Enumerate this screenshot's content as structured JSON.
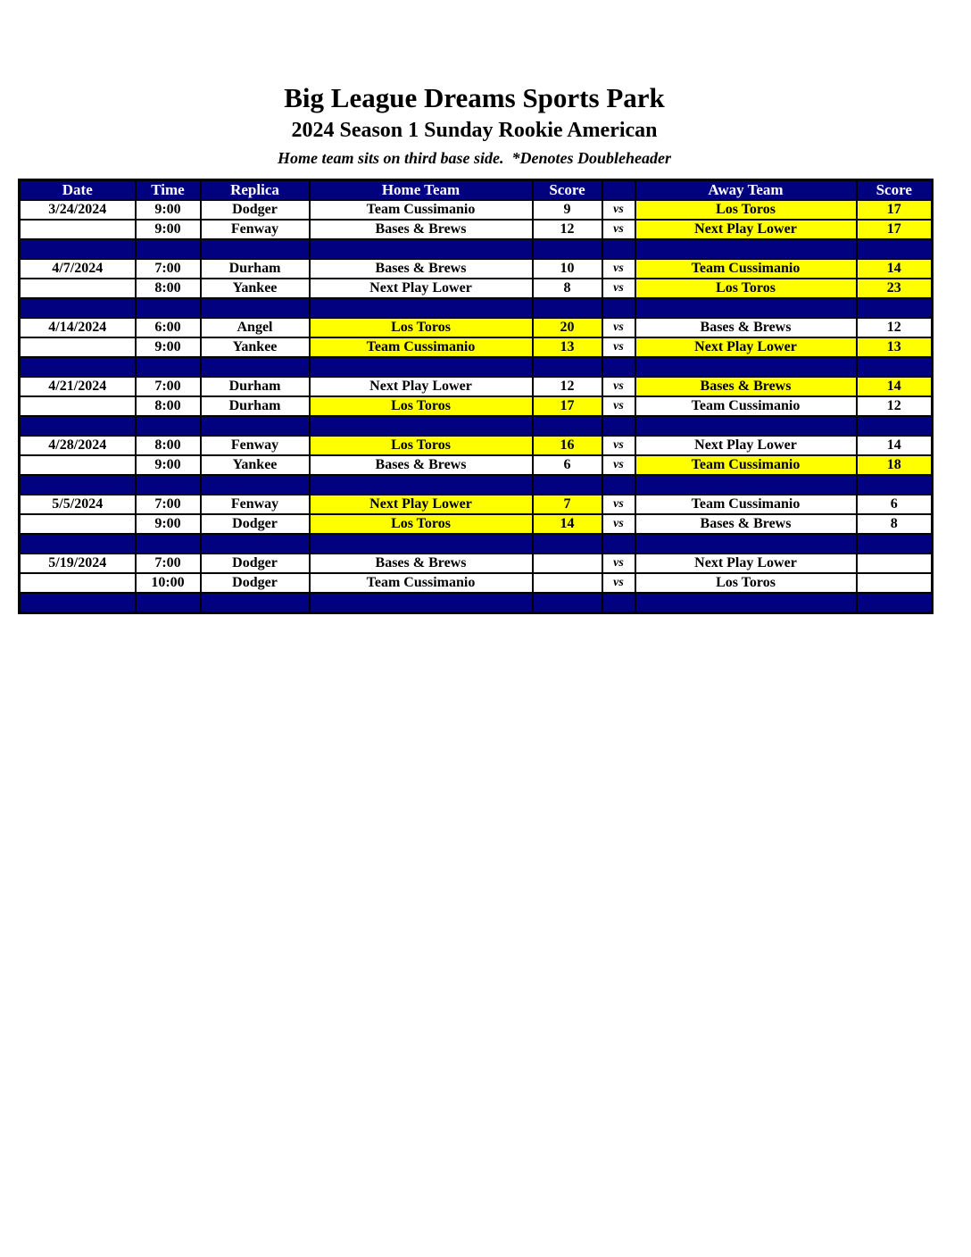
{
  "page": {
    "title": "Big League Dreams Sports Park",
    "subtitle": "2024 Season 1 Sunday Rookie American",
    "note": "Home team sits on third base side.  *Denotes Doubleheader"
  },
  "colors": {
    "navy": "#020280",
    "highlight": "#ffff00",
    "border": "#000000",
    "header_text": "#ffffff"
  },
  "table": {
    "headers": [
      "Date",
      "Time",
      "Replica",
      "Home Team",
      "Score",
      "",
      "Away Team",
      "Score"
    ],
    "vs_label": "vs",
    "rows": [
      {
        "type": "game",
        "date": "3/24/2024",
        "time": "9:00",
        "replica": "Dodger",
        "home": "Team Cussimanio",
        "home_score": "9",
        "away": "Los Toros",
        "away_score": "17",
        "home_win": false,
        "away_win": true
      },
      {
        "type": "game",
        "date": "",
        "time": "9:00",
        "replica": "Fenway",
        "home": "Bases & Brews",
        "home_score": "12",
        "away": "Next Play Lower",
        "away_score": "17",
        "home_win": false,
        "away_win": true
      },
      {
        "type": "separator"
      },
      {
        "type": "game",
        "date": "4/7/2024",
        "time": "7:00",
        "replica": "Durham",
        "home": "Bases & Brews",
        "home_score": "10",
        "away": "Team Cussimanio",
        "away_score": "14",
        "home_win": false,
        "away_win": true
      },
      {
        "type": "game",
        "date": "",
        "time": "8:00",
        "replica": "Yankee",
        "home": "Next Play Lower",
        "home_score": "8",
        "away": "Los Toros",
        "away_score": "23",
        "home_win": false,
        "away_win": true
      },
      {
        "type": "separator"
      },
      {
        "type": "game",
        "date": "4/14/2024",
        "time": "6:00",
        "replica": "Angel",
        "home": "Los Toros",
        "home_score": "20",
        "away": "Bases & Brews",
        "away_score": "12",
        "home_win": true,
        "away_win": false
      },
      {
        "type": "game",
        "date": "",
        "time": "9:00",
        "replica": "Yankee",
        "home": "Team Cussimanio",
        "home_score": "13",
        "away": "Next Play Lower",
        "away_score": "13",
        "home_win": true,
        "away_win": true
      },
      {
        "type": "separator"
      },
      {
        "type": "game",
        "date": "4/21/2024",
        "time": "7:00",
        "replica": "Durham",
        "home": "Next Play Lower",
        "home_score": "12",
        "away": "Bases & Brews",
        "away_score": "14",
        "home_win": false,
        "away_win": true
      },
      {
        "type": "game",
        "date": "",
        "time": "8:00",
        "replica": "Durham",
        "home": "Los Toros",
        "home_score": "17",
        "away": "Team Cussimanio",
        "away_score": "12",
        "home_win": true,
        "away_win": false
      },
      {
        "type": "separator"
      },
      {
        "type": "game",
        "date": "4/28/2024",
        "time": "8:00",
        "replica": "Fenway",
        "home": "Los Toros",
        "home_score": "16",
        "away": "Next Play Lower",
        "away_score": "14",
        "home_win": true,
        "away_win": false
      },
      {
        "type": "game",
        "date": "",
        "time": "9:00",
        "replica": "Yankee",
        "home": "Bases & Brews",
        "home_score": "6",
        "away": "Team Cussimanio",
        "away_score": "18",
        "home_win": false,
        "away_win": true
      },
      {
        "type": "separator"
      },
      {
        "type": "game",
        "date": "5/5/2024",
        "time": "7:00",
        "replica": "Fenway",
        "home": "Next Play Lower",
        "home_score": "7",
        "away": "Team Cussimanio",
        "away_score": "6",
        "home_win": true,
        "away_win": false
      },
      {
        "type": "game",
        "date": "",
        "time": "9:00",
        "replica": "Dodger",
        "home": "Los Toros",
        "home_score": "14",
        "away": "Bases & Brews",
        "away_score": "8",
        "home_win": true,
        "away_win": false
      },
      {
        "type": "separator"
      },
      {
        "type": "game",
        "date": "5/19/2024",
        "time": "7:00",
        "replica": "Dodger",
        "home": "Bases & Brews",
        "home_score": "",
        "away": "Next Play Lower",
        "away_score": "",
        "home_win": false,
        "away_win": false
      },
      {
        "type": "game",
        "date": "",
        "time": "10:00",
        "replica": "Dodger",
        "home": "Team Cussimanio",
        "home_score": "",
        "away": "Los Toros",
        "away_score": "",
        "home_win": false,
        "away_win": false
      },
      {
        "type": "separator"
      }
    ]
  }
}
